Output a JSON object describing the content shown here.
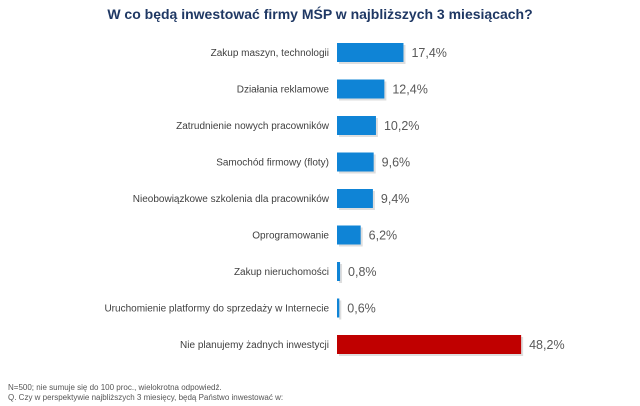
{
  "title": "W co będą inwestować firmy MŚP w najbliższych 3 miesiącach?",
  "footnotes": {
    "n": "N=500; nie sumuje się do 100 proc., wielokrotna odpowiedź.",
    "question": "Q. Czy w perspektywie najbliższych 3 miesięcy, będą Państwo inwestować w:"
  },
  "colors": {
    "bar": "#0f84d6",
    "bar_highlight": "#c00000",
    "label": "#404040",
    "value": "#595959",
    "title": "#1f3864"
  },
  "chart_data": {
    "type": "bar",
    "orientation": "horizontal",
    "title": "W co będą inwestować firmy MŚP w najbliższych 3 miesiącach?",
    "xlabel": "",
    "ylabel": "",
    "xlim": [
      0,
      50
    ],
    "grid": false,
    "categories": [
      "Zakup maszyn, technologii",
      "Działania reklamowe",
      "Zatrudnienie nowych pracowników",
      "Samochód firmowy (floty)",
      "Nieobowiązkowe szkolenia dla pracowników",
      "Oprogramowanie",
      "Zakup nieruchomości",
      "Uruchomienie platformy do sprzedaży w Internecie",
      "Nie planujemy żadnych inwestycji"
    ],
    "values": [
      17.4,
      12.4,
      10.2,
      9.6,
      9.4,
      6.2,
      0.8,
      0.6,
      48.2
    ],
    "value_labels": [
      "17,4%",
      "12,4%",
      "10,2%",
      "9,6%",
      "9,4%",
      "6,2%",
      "0,8%",
      "0,6%",
      "48,2%"
    ],
    "highlight_index": 8
  }
}
